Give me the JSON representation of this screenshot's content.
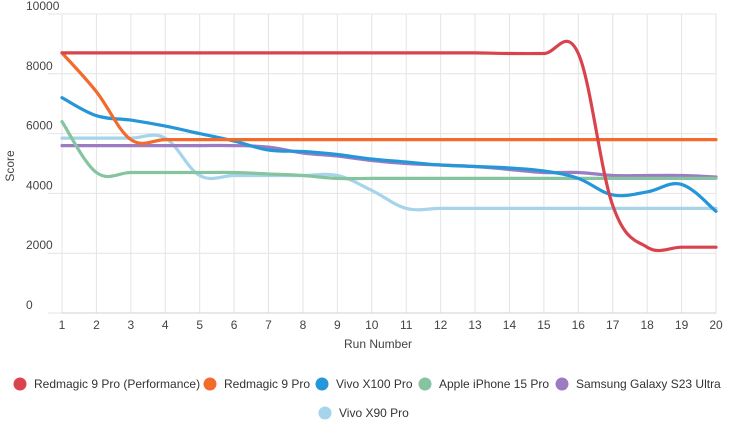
{
  "chart_data": {
    "type": "line",
    "title": "",
    "xlabel": "Run Number",
    "ylabel": "Score",
    "ylim": [
      0,
      10000
    ],
    "yticks": [
      0,
      2000,
      4000,
      6000,
      8000,
      10000
    ],
    "x": [
      1,
      2,
      3,
      4,
      5,
      6,
      7,
      8,
      9,
      10,
      11,
      12,
      13,
      14,
      15,
      16,
      17,
      18,
      19,
      20
    ],
    "grid": true,
    "legend_position": "bottom",
    "series": [
      {
        "name": "Redmagic 9 Pro (Performance)",
        "color": "#d9434e",
        "values": [
          8700,
          8700,
          8700,
          8700,
          8700,
          8700,
          8700,
          8700,
          8700,
          8700,
          8700,
          8700,
          8700,
          8680,
          8680,
          8680,
          3600,
          2200,
          2200,
          2200
        ]
      },
      {
        "name": "Redmagic 9 Pro",
        "color": "#f26b2c",
        "values": [
          8700,
          7400,
          5800,
          5800,
          5800,
          5800,
          5800,
          5800,
          5800,
          5800,
          5800,
          5800,
          5800,
          5800,
          5800,
          5800,
          5800,
          5800,
          5800,
          5800
        ]
      },
      {
        "name": "Vivo X100 Pro",
        "color": "#2596d8",
        "values": [
          7200,
          6600,
          6450,
          6250,
          6000,
          5750,
          5450,
          5400,
          5300,
          5150,
          5050,
          4950,
          4900,
          4850,
          4750,
          4500,
          3950,
          4050,
          4300,
          3400
        ]
      },
      {
        "name": "Apple iPhone 15 Pro",
        "color": "#86c4a0",
        "values": [
          6400,
          4700,
          4700,
          4700,
          4700,
          4700,
          4650,
          4600,
          4500,
          4500,
          4500,
          4500,
          4500,
          4500,
          4500,
          4500,
          4500,
          4500,
          4500,
          4500
        ]
      },
      {
        "name": "Samsung Galaxy S23 Ultra",
        "color": "#9b7cc2",
        "values": [
          5600,
          5600,
          5600,
          5600,
          5600,
          5600,
          5550,
          5350,
          5250,
          5100,
          5000,
          4950,
          4900,
          4800,
          4700,
          4700,
          4600,
          4600,
          4600,
          4550
        ]
      },
      {
        "name": "Vivo X90 Pro",
        "color": "#a6d4ea",
        "values": [
          5850,
          5850,
          5850,
          5850,
          4600,
          4600,
          4600,
          4600,
          4600,
          4100,
          3500,
          3500,
          3500,
          3500,
          3500,
          3500,
          3500,
          3500,
          3500,
          3500
        ]
      }
    ]
  }
}
